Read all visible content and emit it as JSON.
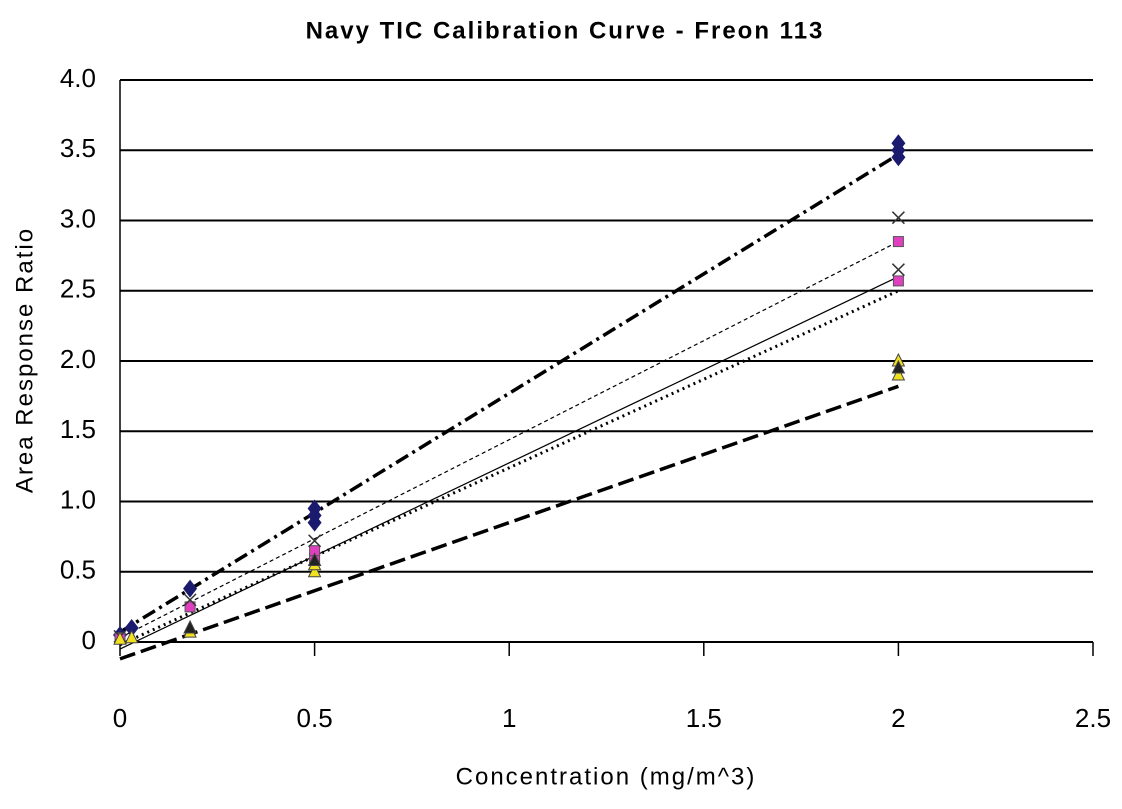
{
  "chart_data": {
    "type": "scatter",
    "title": "Navy TIC Calibration Curve - Freon 113",
    "x_label": "Concentration (mg/m^3)",
    "y_label": "Area Response Ratio",
    "xlim": [
      0,
      2.5
    ],
    "xticks": [
      0,
      0.5,
      1,
      1.5,
      2,
      2.5
    ],
    "ylim": [
      0,
      4
    ],
    "yticks": [
      0,
      0.5,
      {
        "value": 1,
        "label": "1.0"
      },
      1.5,
      {
        "value": 2,
        "label": "2.0"
      },
      2.5,
      {
        "value": 3,
        "label": "3.0"
      },
      3.5,
      {
        "value": 4,
        "label": "4.0"
      }
    ],
    "grid": true,
    "series": [
      {
        "marker": "diamond",
        "color": "#1a1a6e",
        "x": [
          0,
          0.03,
          0.18,
          0.5,
          0.5,
          0.5,
          2,
          2,
          2
        ],
        "values": [
          0.05,
          0.1,
          0.38,
          0.85,
          0.9,
          0.95,
          3.45,
          3.5,
          3.55
        ]
      },
      {
        "marker": "square",
        "color": "#e040c0",
        "x": [
          0,
          0.18,
          0.5,
          0.5,
          2,
          2
        ],
        "values": [
          0.03,
          0.25,
          0.6,
          0.65,
          2.57,
          2.85
        ]
      },
      {
        "marker": "x",
        "color": "#333333",
        "x": [
          0,
          0.18,
          0.5,
          2,
          2
        ],
        "values": [
          0.04,
          0.3,
          0.72,
          2.65,
          3.02
        ]
      },
      {
        "marker": "triangle",
        "color": "#f0e020",
        "x": [
          0,
          0.03,
          0.18,
          0.5,
          0.5,
          2,
          2
        ],
        "values": [
          0.02,
          0.03,
          0.07,
          0.5,
          0.55,
          1.9,
          2.0
        ]
      },
      {
        "marker": "triangle",
        "color": "#222222",
        "x": [
          0.18,
          0.5,
          2
        ],
        "values": [
          0.1,
          0.58,
          1.95
        ]
      }
    ],
    "trendlines": [
      {
        "dash": "14 5 3 5",
        "width": 3.5,
        "x": [
          0,
          2
        ],
        "values": [
          0.07,
          3.47
        ]
      },
      {
        "dash": "4 3",
        "width": 1.2,
        "x": [
          0,
          2
        ],
        "values": [
          0.03,
          2.85
        ]
      },
      {
        "dash": "none",
        "width": 1.2,
        "x": [
          0,
          2
        ],
        "values": [
          -0.05,
          2.6
        ]
      },
      {
        "dash": "2 4",
        "width": 3,
        "x": [
          0,
          2
        ],
        "values": [
          -0.02,
          2.5
        ]
      },
      {
        "dash": "16 6",
        "width": 3.5,
        "x": [
          0,
          2
        ],
        "values": [
          -0.12,
          1.82
        ]
      }
    ]
  }
}
